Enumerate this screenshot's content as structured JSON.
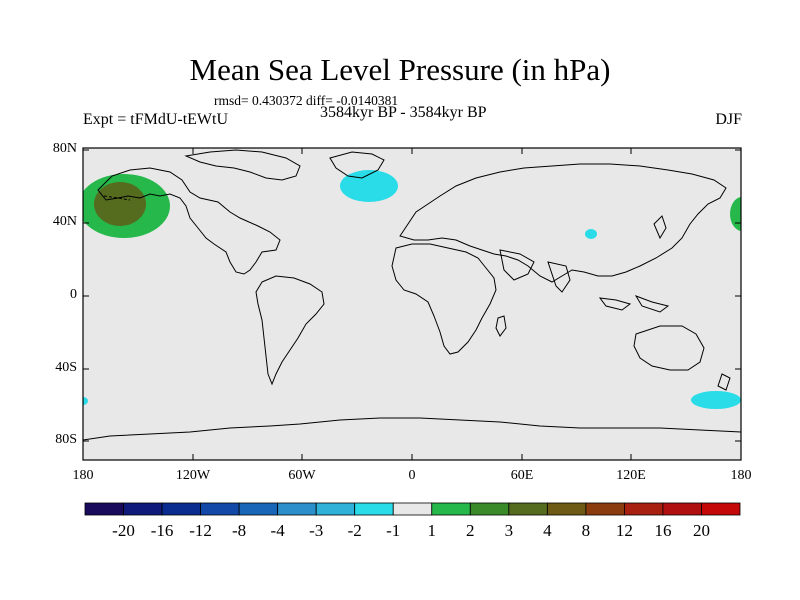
{
  "title": "Mean Sea Level Pressure (in hPa)",
  "stats": "rmsd= 0.430372 diff= -0.0140381",
  "expt": "Expt = tFMdU-tEWtU",
  "period": "3584kyr BP - 3584kyr BP",
  "season": "DJF",
  "lat_ticks": [
    "80N",
    "40N",
    "0",
    "40S",
    "80S"
  ],
  "lon_ticks": [
    "180",
    "120W",
    "60W",
    "0",
    "60E",
    "120E",
    "180"
  ],
  "colorbar": {
    "labels": [
      "-20",
      "-16",
      "-12",
      "-8",
      "-4",
      "-3",
      "-2",
      "-1",
      "1",
      "2",
      "3",
      "4",
      "8",
      "12",
      "16",
      "20"
    ],
    "colors": [
      "#1a0a5c",
      "#0f1a7a",
      "#0a2b8f",
      "#1248a8",
      "#1766b8",
      "#2b8fcc",
      "#2fb1d8",
      "#29dce8",
      "#e8e8e8",
      "#26b84a",
      "#3a8a2a",
      "#556b1e",
      "#6e5a14",
      "#8a3c0e",
      "#a82010",
      "#b01010",
      "#c40808"
    ]
  },
  "colors": {
    "ocean": "#e8e8e8",
    "positive_low": "#26b84a",
    "positive_mid": "#556b1e",
    "negative_low": "#29dce8"
  }
}
